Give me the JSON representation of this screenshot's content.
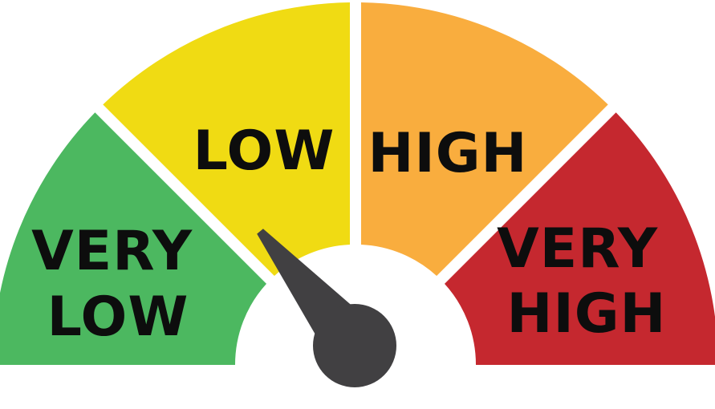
{
  "gauge": {
    "value": 0.28,
    "segments": [
      {
        "lines": [
          "VERY",
          "LOW"
        ],
        "color": "#4cb860"
      },
      {
        "lines": [
          "LOW"
        ],
        "color": "#f0db13"
      },
      {
        "lines": [
          "HIGH"
        ],
        "color": "#f9ad3e"
      },
      {
        "lines": [
          "VERY",
          "HIGH"
        ],
        "color": "#c5282f"
      }
    ],
    "needle_color": "#414042"
  }
}
